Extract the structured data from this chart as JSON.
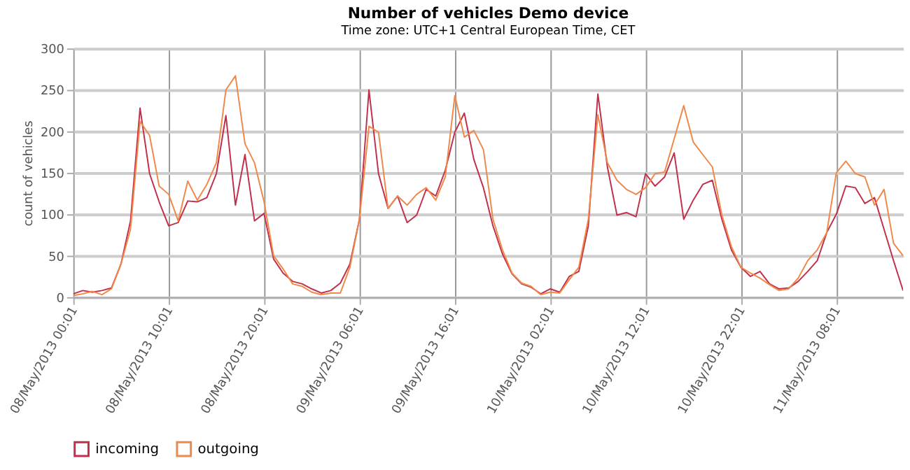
{
  "chart_data": {
    "type": "line",
    "title": "Number of vehicles Demo device",
    "subtitle": "Time zone: UTC+1 Central European Time, CET",
    "ylabel": "count of vehicles",
    "x": [
      "2013-05-08T00:01",
      "2013-05-08T01:01",
      "2013-05-08T02:01",
      "2013-05-08T03:01",
      "2013-05-08T04:01",
      "2013-05-08T05:01",
      "2013-05-08T06:01",
      "2013-05-08T07:01",
      "2013-05-08T08:01",
      "2013-05-08T09:01",
      "2013-05-08T10:01",
      "2013-05-08T11:01",
      "2013-05-08T12:01",
      "2013-05-08T13:01",
      "2013-05-08T14:01",
      "2013-05-08T15:01",
      "2013-05-08T16:01",
      "2013-05-08T17:01",
      "2013-05-08T18:01",
      "2013-05-08T19:01",
      "2013-05-08T20:01",
      "2013-05-08T21:01",
      "2013-05-08T22:01",
      "2013-05-08T23:01",
      "2013-05-09T00:01",
      "2013-05-09T01:01",
      "2013-05-09T02:01",
      "2013-05-09T03:01",
      "2013-05-09T04:01",
      "2013-05-09T05:01",
      "2013-05-09T06:01",
      "2013-05-09T07:01",
      "2013-05-09T08:01",
      "2013-05-09T09:01",
      "2013-05-09T10:01",
      "2013-05-09T11:01",
      "2013-05-09T12:01",
      "2013-05-09T13:01",
      "2013-05-09T14:01",
      "2013-05-09T15:01",
      "2013-05-09T16:01",
      "2013-05-09T17:01",
      "2013-05-09T18:01",
      "2013-05-09T19:01",
      "2013-05-09T20:01",
      "2013-05-09T21:01",
      "2013-05-09T22:01",
      "2013-05-09T23:01",
      "2013-05-10T00:01",
      "2013-05-10T01:01",
      "2013-05-10T02:01",
      "2013-05-10T03:01",
      "2013-05-10T04:01",
      "2013-05-10T05:01",
      "2013-05-10T06:01",
      "2013-05-10T07:01",
      "2013-05-10T08:01",
      "2013-05-10T09:01",
      "2013-05-10T10:01",
      "2013-05-10T11:01",
      "2013-05-10T12:01",
      "2013-05-10T13:01",
      "2013-05-10T14:01",
      "2013-05-10T15:01",
      "2013-05-10T16:01",
      "2013-05-10T17:01",
      "2013-05-10T18:01",
      "2013-05-10T19:01",
      "2013-05-10T20:01",
      "2013-05-10T21:01",
      "2013-05-10T22:01",
      "2013-05-10T23:01",
      "2013-05-11T00:01",
      "2013-05-11T01:01",
      "2013-05-11T02:01",
      "2013-05-11T03:01",
      "2013-05-11T04:01",
      "2013-05-11T05:01",
      "2013-05-11T06:01",
      "2013-05-11T07:01",
      "2013-05-11T08:01",
      "2013-05-11T09:01",
      "2013-05-11T10:01",
      "2013-05-11T11:01",
      "2013-05-11T12:01",
      "2013-05-11T13:01",
      "2013-05-11T14:01",
      "2013-05-11T15:01"
    ],
    "series": [
      {
        "name": "incoming",
        "color": "#c0304a",
        "values": [
          4,
          8,
          6,
          8,
          11,
          40,
          92,
          228,
          149,
          115,
          86,
          90,
          116,
          115,
          120,
          149,
          219,
          111,
          172,
          92,
          101,
          46,
          29,
          19,
          16,
          10,
          5,
          8,
          17,
          40,
          94,
          250,
          149,
          107,
          122,
          90,
          99,
          130,
          122,
          153,
          199,
          222,
          166,
          132,
          86,
          52,
          28,
          16,
          12,
          4,
          10,
          6,
          25,
          31,
          86,
          245,
          157,
          99,
          102,
          97,
          149,
          134,
          145,
          174,
          94,
          117,
          136,
          141,
          94,
          57,
          36,
          25,
          31,
          16,
          10,
          11,
          19,
          31,
          44,
          78,
          100,
          134,
          132,
          113,
          120,
          82,
          44,
          8
        ]
      },
      {
        "name": "outgoing",
        "color": "#f0884a",
        "values": [
          2,
          4,
          7,
          3,
          10,
          40,
          82,
          212,
          195,
          134,
          124,
          92,
          140,
          117,
          136,
          162,
          250,
          267,
          185,
          162,
          115,
          50,
          34,
          16,
          13,
          6,
          3,
          5,
          5,
          36,
          94,
          206,
          199,
          107,
          122,
          111,
          124,
          132,
          117,
          145,
          243,
          193,
          201,
          178,
          94,
          57,
          29,
          17,
          13,
          3,
          6,
          5,
          21,
          36,
          94,
          220,
          162,
          141,
          130,
          124,
          132,
          149,
          151,
          191,
          231,
          187,
          172,
          157,
          99,
          61,
          36,
          29,
          23,
          15,
          8,
          10,
          23,
          44,
          57,
          78,
          150,
          164,
          149,
          145,
          111,
          130,
          65,
          50
        ]
      }
    ],
    "xlim": [
      "2013-05-08T00:01",
      "2013-05-11T15:01"
    ],
    "xticks": [
      {
        "value": "2013-05-08T00:01",
        "label": "08/May/2013 00:01"
      },
      {
        "value": "2013-05-08T10:01",
        "label": "08/May/2013 10:01"
      },
      {
        "value": "2013-05-08T20:01",
        "label": "08/May/2013 20:01"
      },
      {
        "value": "2013-05-09T06:01",
        "label": "09/May/2013 06:01"
      },
      {
        "value": "2013-05-09T16:01",
        "label": "09/May/2013 16:01"
      },
      {
        "value": "2013-05-10T02:01",
        "label": "10/May/2013 02:01"
      },
      {
        "value": "2013-05-10T12:01",
        "label": "10/May/2013 12:01"
      },
      {
        "value": "2013-05-10T22:01",
        "label": "10/May/2013 22:01"
      },
      {
        "value": "2013-05-11T08:01",
        "label": "11/May/2013 08:01"
      }
    ],
    "ylim": [
      0,
      300
    ],
    "yticks": [
      0,
      50,
      100,
      150,
      200,
      250,
      300
    ],
    "grid": true,
    "legend": "bottom",
    "marker": "none",
    "line_style": "solid"
  }
}
